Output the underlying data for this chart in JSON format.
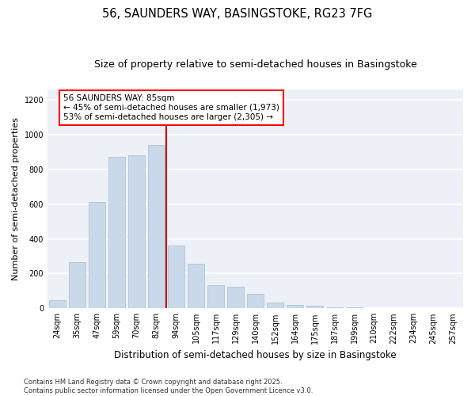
{
  "title1": "56, SAUNDERS WAY, BASINGSTOKE, RG23 7FG",
  "title2": "Size of property relative to semi-detached houses in Basingstoke",
  "xlabel": "Distribution of semi-detached houses by size in Basingstoke",
  "ylabel": "Number of semi-detached properties",
  "categories": [
    "24sqm",
    "35sqm",
    "47sqm",
    "59sqm",
    "70sqm",
    "82sqm",
    "94sqm",
    "105sqm",
    "117sqm",
    "129sqm",
    "140sqm",
    "152sqm",
    "164sqm",
    "175sqm",
    "187sqm",
    "199sqm",
    "210sqm",
    "222sqm",
    "234sqm",
    "245sqm",
    "257sqm"
  ],
  "values": [
    45,
    265,
    610,
    870,
    880,
    940,
    360,
    255,
    135,
    125,
    85,
    35,
    20,
    15,
    5,
    5,
    3,
    3,
    2,
    0,
    2
  ],
  "bar_color": "#c9d9e9",
  "bar_edgecolor": "#a8becc",
  "vline_x": 6.5,
  "vline_color": "#cc0000",
  "annotation_text": "56 SAUNDERS WAY: 85sqm\n← 45% of semi-detached houses are smaller (1,973)\n53% of semi-detached houses are larger (2,305) →",
  "ylim": [
    0,
    1260
  ],
  "yticks": [
    0,
    200,
    400,
    600,
    800,
    1000,
    1200
  ],
  "background_color": "#edf1f7",
  "grid_color": "#ffffff",
  "footer": "Contains HM Land Registry data © Crown copyright and database right 2025.\nContains public sector information licensed under the Open Government Licence v3.0.",
  "title1_fontsize": 10.5,
  "title2_fontsize": 9,
  "xlabel_fontsize": 8.5,
  "ylabel_fontsize": 8,
  "tick_fontsize": 7,
  "annotation_fontsize": 7.5,
  "footer_fontsize": 6
}
